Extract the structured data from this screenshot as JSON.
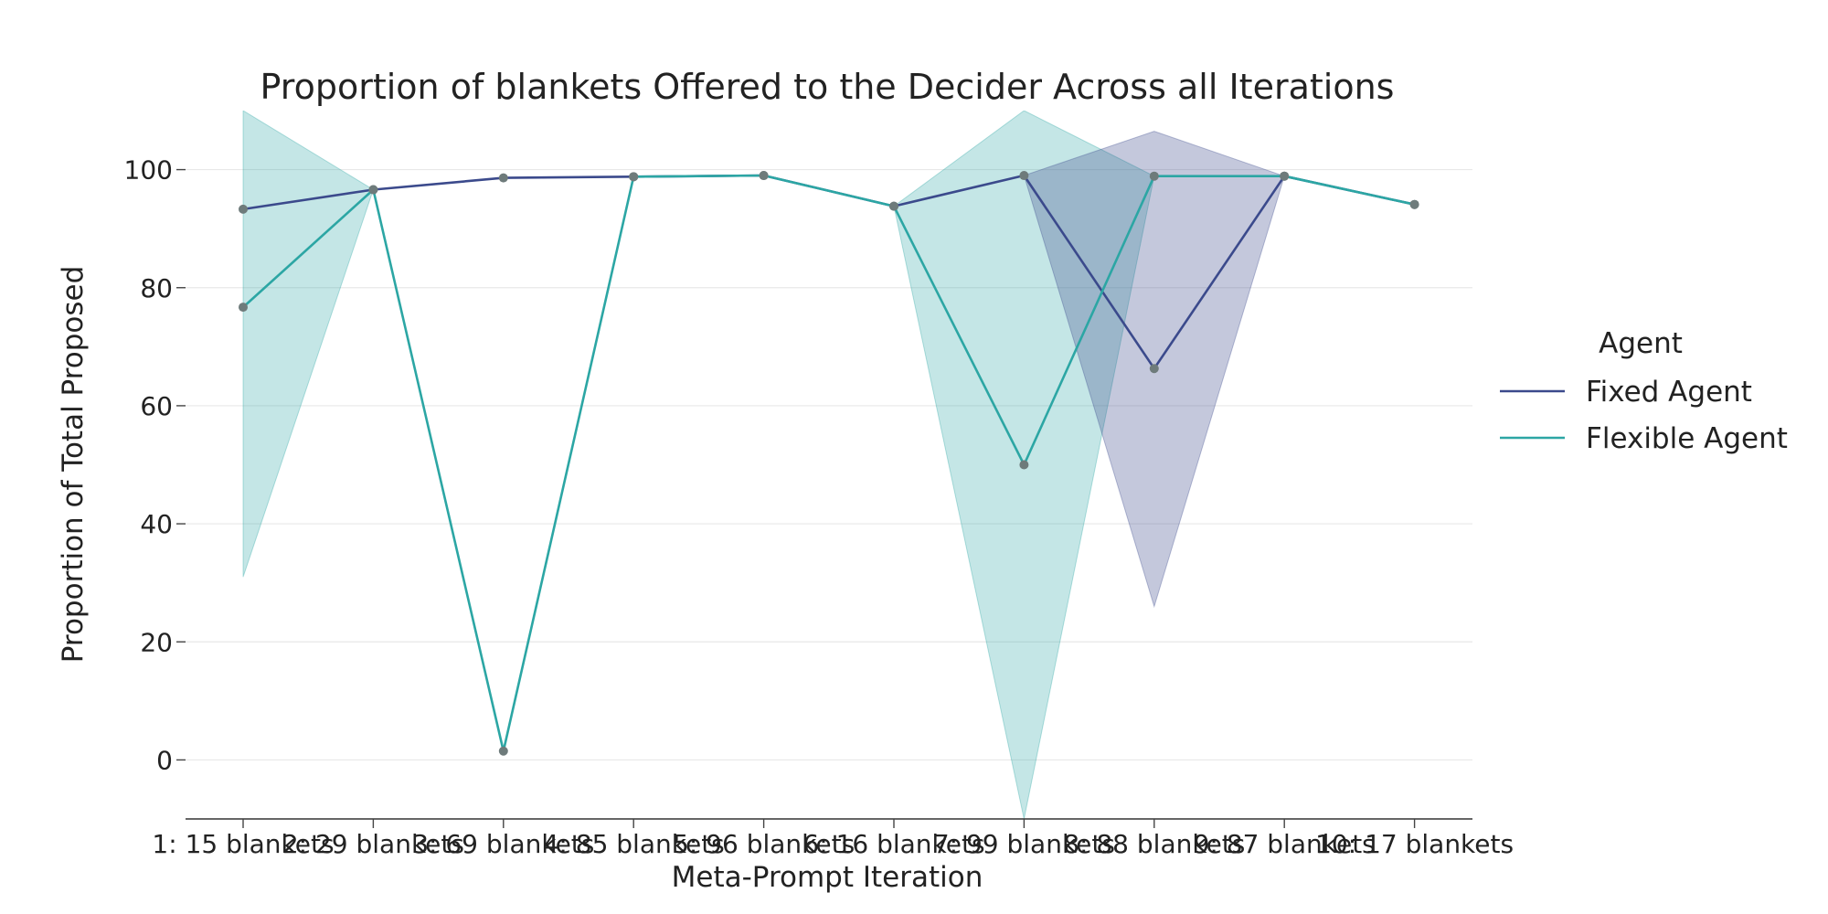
{
  "chart_data": {
    "type": "line",
    "title": "Proportion of blankets Offered to the Decider Across all Iterations",
    "xlabel": "Meta-Prompt Iteration",
    "ylabel": "Proportion of Total Proposed",
    "categories": [
      "1: 15 blankets",
      "2: 29 blankets",
      "3: 69 blankets",
      "4: 85 blankets",
      "5: 96 blankets",
      "6: 16 blankets",
      "7: 99 blankets",
      "8: 88 blankets",
      "9: 87 blankets",
      "10: 17 blankets"
    ],
    "ylim": [
      -10,
      110
    ],
    "yticks": [
      0,
      20,
      40,
      60,
      80,
      100
    ],
    "grid": "horizontal",
    "legend": {
      "title": "Agent",
      "placement": "right"
    },
    "series": [
      {
        "name": "Fixed Agent",
        "color": "#3b4a8c",
        "values": [
          93.3,
          96.6,
          98.6,
          98.8,
          99.0,
          93.8,
          99.0,
          66.3,
          98.9,
          94.1
        ],
        "ci_lower": [
          93.3,
          96.6,
          98.6,
          98.8,
          99.0,
          93.8,
          99.0,
          26.0,
          98.9,
          94.1
        ],
        "ci_upper": [
          93.3,
          96.6,
          98.6,
          98.8,
          99.0,
          93.8,
          99.0,
          106.5,
          98.9,
          94.1
        ]
      },
      {
        "name": "Flexible Agent",
        "color": "#2ca6a4",
        "values": [
          76.7,
          96.6,
          1.5,
          98.8,
          99.0,
          93.8,
          50.0,
          98.9,
          98.9,
          94.1
        ],
        "ci_lower": [
          31.0,
          96.6,
          1.5,
          98.8,
          99.0,
          93.8,
          -10.0,
          98.9,
          98.9,
          94.1
        ],
        "ci_upper": [
          110.0,
          96.6,
          1.5,
          98.8,
          99.0,
          93.8,
          110.0,
          98.9,
          98.9,
          94.1
        ]
      }
    ],
    "marker_color": "#6e7b7b"
  }
}
